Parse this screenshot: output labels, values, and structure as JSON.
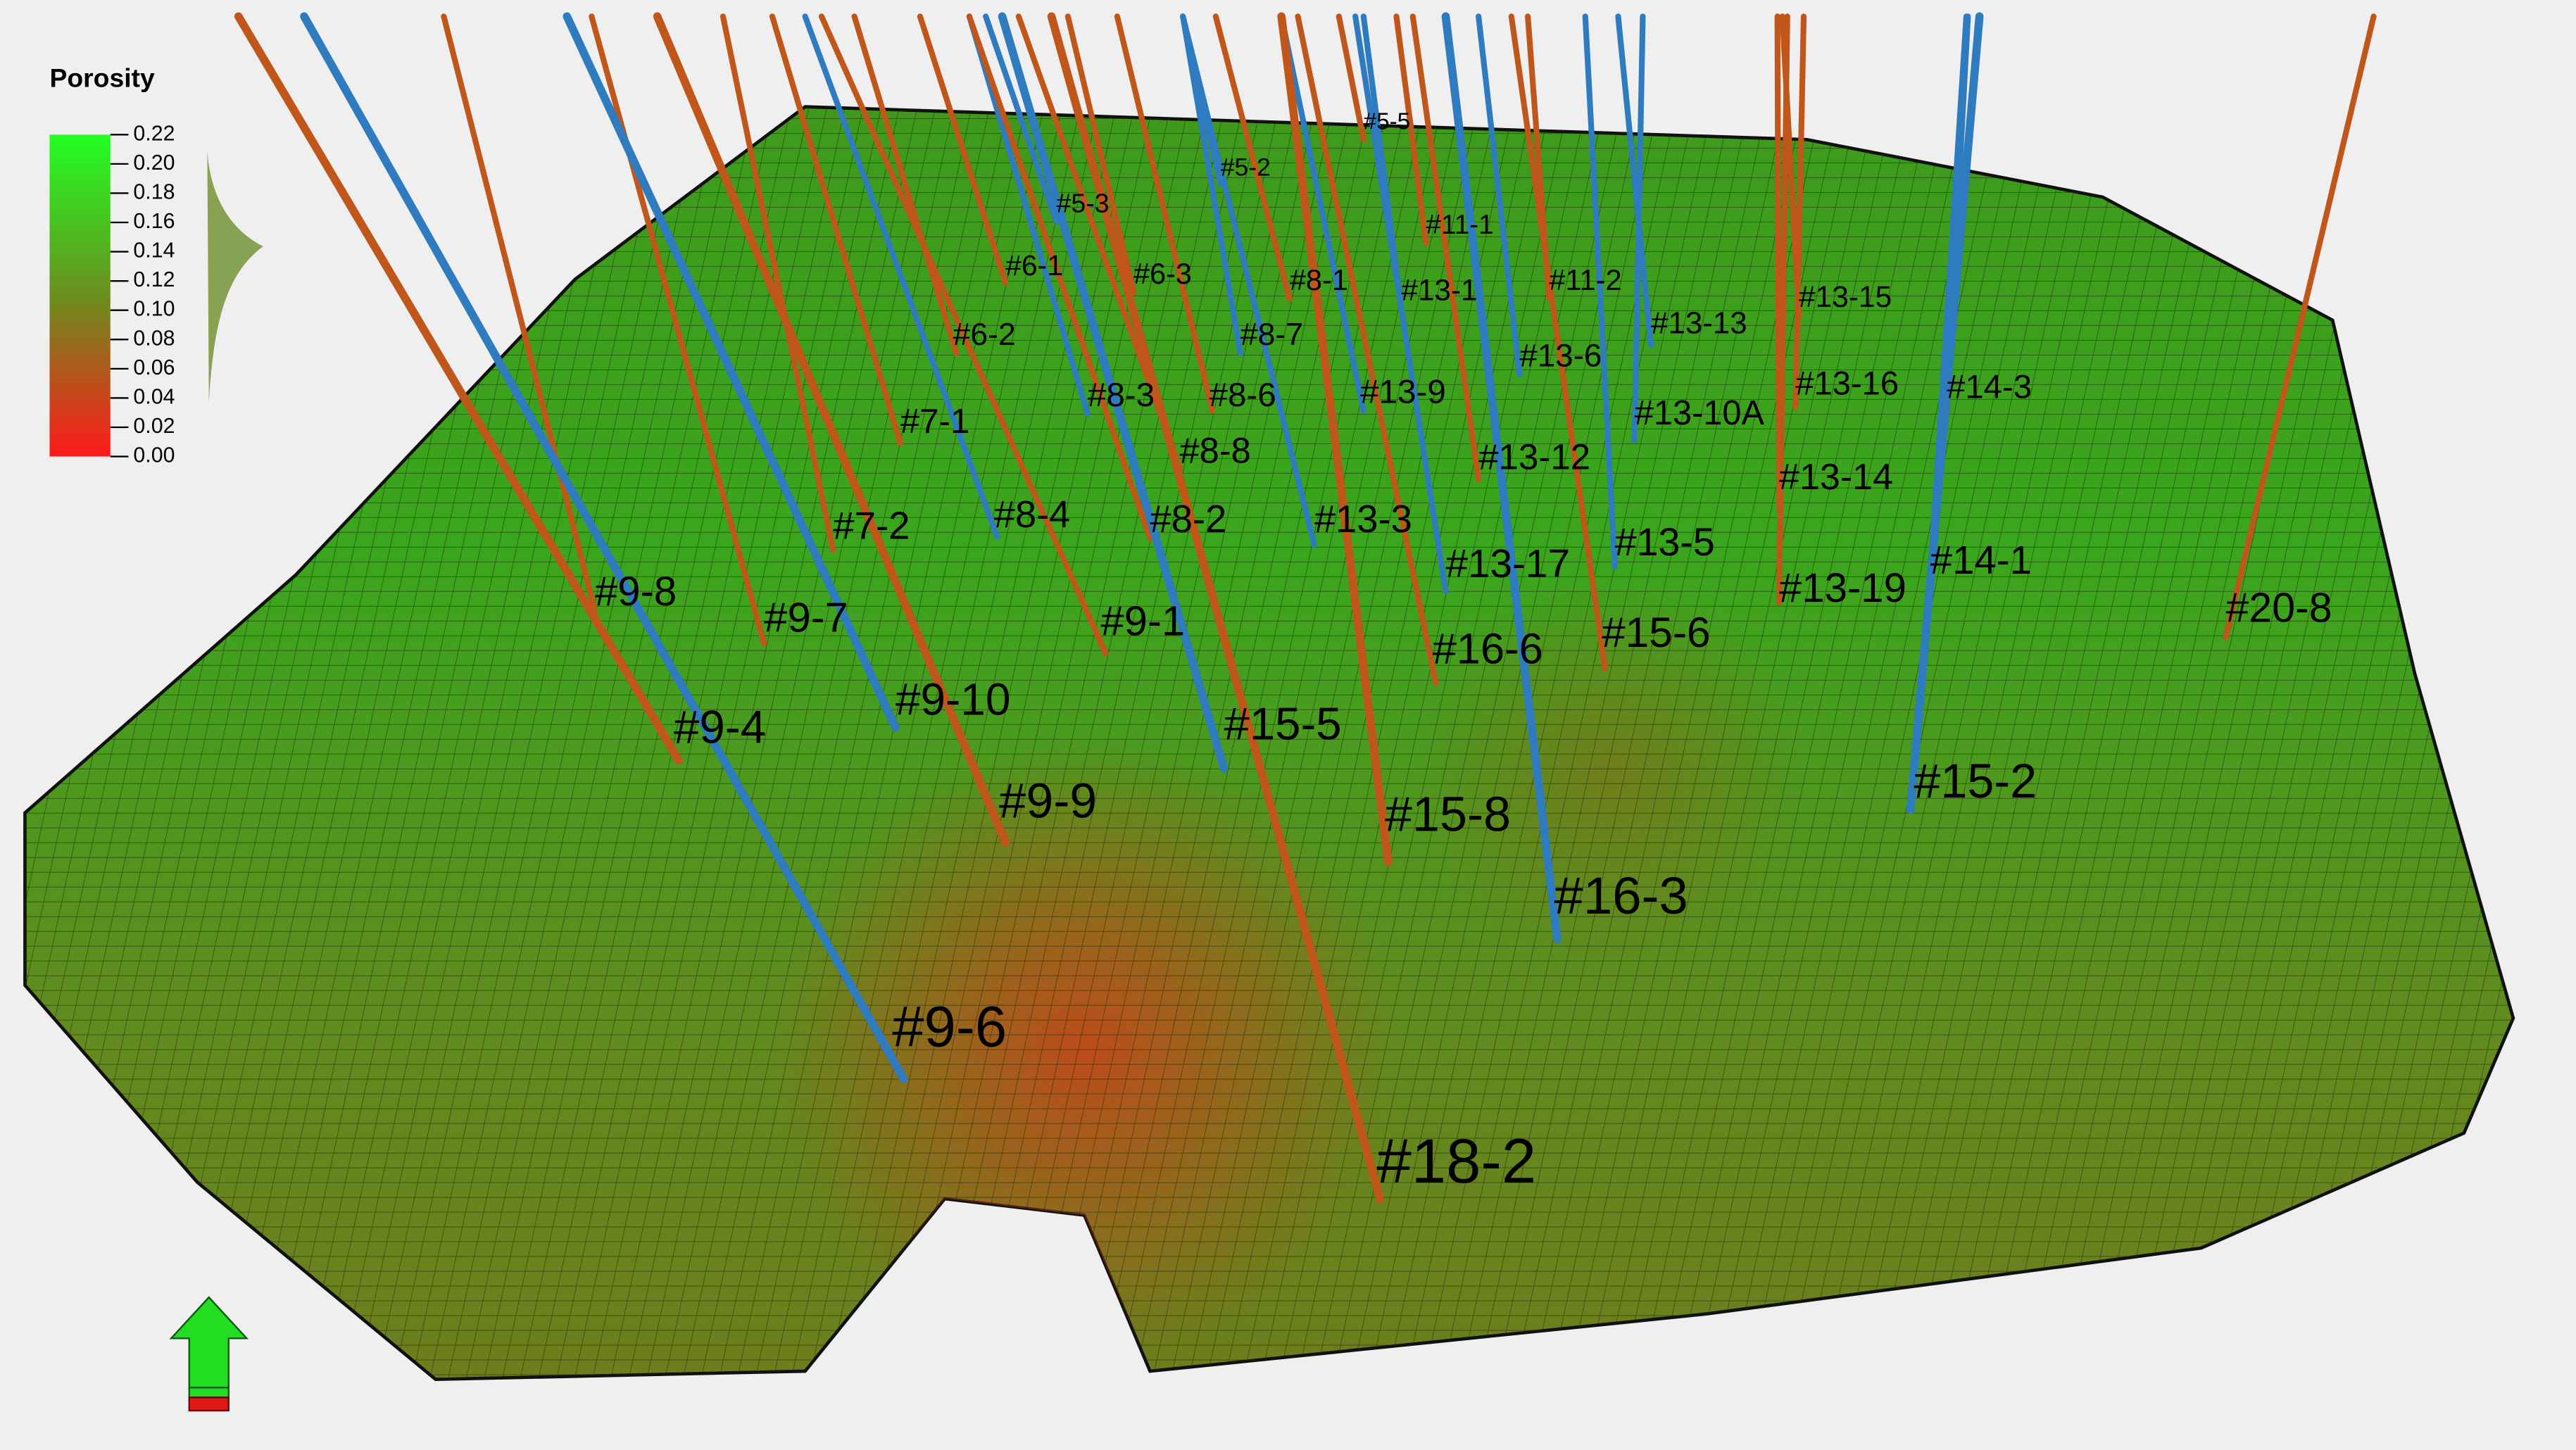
{
  "legend": {
    "title": "Porosity",
    "ticks": [
      {
        "value": 0.22,
        "label": "0.22"
      },
      {
        "value": 0.2,
        "label": "0.20"
      },
      {
        "value": 0.18,
        "label": "0.18"
      },
      {
        "value": 0.16,
        "label": "0.16"
      },
      {
        "value": 0.14,
        "label": "0.14"
      },
      {
        "value": 0.12,
        "label": "0.12"
      },
      {
        "value": 0.1,
        "label": "0.10"
      },
      {
        "value": 0.08,
        "label": "0.08"
      },
      {
        "value": 0.06,
        "label": "0.06"
      },
      {
        "value": 0.04,
        "label": "0.04"
      },
      {
        "value": 0.02,
        "label": "0.02"
      },
      {
        "value": 0,
        "label": "0.00"
      }
    ]
  },
  "wells": [
    {
      "label": "#9-6",
      "color": "#2e7bbf"
    },
    {
      "label": "#18-2",
      "color": "#c0561a"
    },
    {
      "label": "#16-3",
      "color": "#2e7bbf"
    },
    {
      "label": "#15-8",
      "color": "#c0561a"
    },
    {
      "label": "#15-2",
      "color": "#2e7bbf"
    },
    {
      "label": "#9-9",
      "color": "#c0561a"
    },
    {
      "label": "#15-5",
      "color": "#2e7bbf"
    },
    {
      "label": "#9-10",
      "color": "#2e7bbf"
    },
    {
      "label": "#9-4",
      "color": "#c0561a"
    },
    {
      "label": "#16-6",
      "color": "#c0561a"
    },
    {
      "label": "#15-6",
      "color": "#c0561a"
    },
    {
      "label": "#13-19",
      "color": "#c0561a"
    },
    {
      "label": "#14-1",
      "color": "#2e7bbf"
    },
    {
      "label": "#20-8",
      "color": "#c0561a"
    },
    {
      "label": "#9-7",
      "color": "#c0561a"
    },
    {
      "label": "#9-8",
      "color": "#c0561a"
    },
    {
      "label": "#9-1",
      "color": "#c0561a"
    },
    {
      "label": "#7-2",
      "color": "#c0561a"
    },
    {
      "label": "#8-4",
      "color": "#2e7bbf"
    },
    {
      "label": "#8-2",
      "color": "#c0561a"
    },
    {
      "label": "#13-3",
      "color": "#2e7bbf"
    },
    {
      "label": "#13-17",
      "color": "#2e7bbf"
    },
    {
      "label": "#13-5",
      "color": "#2e7bbf"
    },
    {
      "label": "#7-1",
      "color": "#c0561a"
    },
    {
      "label": "#6-2",
      "color": "#c0561a"
    },
    {
      "label": "#8-3",
      "color": "#2e7bbf"
    },
    {
      "label": "#8-6",
      "color": "#c0561a"
    },
    {
      "label": "#8-8",
      "color": "#c0561a"
    },
    {
      "label": "#13-9",
      "color": "#2e7bbf"
    },
    {
      "label": "#13-12",
      "color": "#c0561a"
    },
    {
      "label": "#13-10A",
      "color": "#2e7bbf"
    },
    {
      "label": "#13-14",
      "color": "#c0561a"
    },
    {
      "label": "#13-16",
      "color": "#c0561a"
    },
    {
      "label": "#14-3",
      "color": "#2e7bbf"
    },
    {
      "label": "#13-13",
      "color": "#2e7bbf"
    },
    {
      "label": "#13-15",
      "color": "#c0561a"
    },
    {
      "label": "#13-6",
      "color": "#2e7bbf"
    },
    {
      "label": "#11-2",
      "color": "#c0561a"
    },
    {
      "label": "#8-1",
      "color": "#c0561a"
    },
    {
      "label": "#13-1",
      "color": "#2e7bbf"
    },
    {
      "label": "#8-7",
      "color": "#2e7bbf"
    },
    {
      "label": "#6-1",
      "color": "#c0561a"
    },
    {
      "label": "#6-3",
      "color": "#c0561a"
    },
    {
      "label": "#11-1",
      "color": "#c0561a"
    },
    {
      "label": "#5-3",
      "color": "#2e7bbf"
    },
    {
      "label": "#5-2",
      "color": "#2e7bbf"
    },
    {
      "label": "#5-5",
      "color": "#c0561a"
    }
  ]
}
